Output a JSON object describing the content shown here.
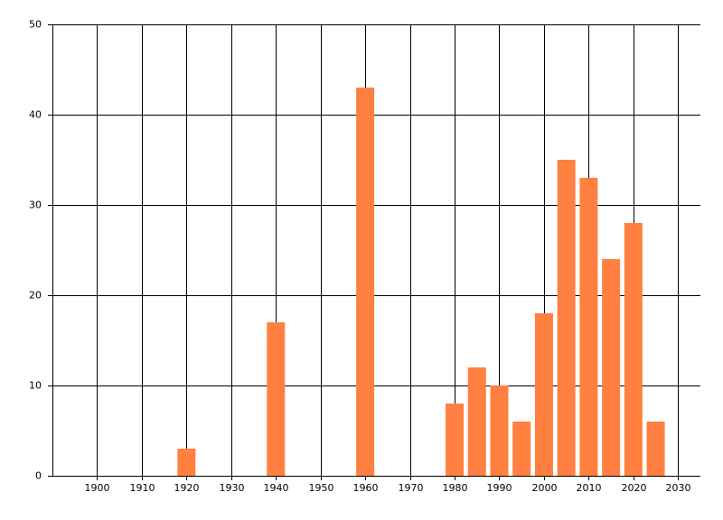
{
  "chart_data": {
    "type": "bar",
    "x": [
      1920,
      1940,
      1960,
      1980,
      1985,
      1990,
      1995,
      2000,
      2005,
      2010,
      2015,
      2020,
      2025
    ],
    "values": [
      3,
      17,
      43,
      8,
      12,
      10,
      6,
      18,
      35,
      33,
      24,
      28,
      6
    ],
    "color": "#ff8040",
    "xlim": [
      1890,
      2035
    ],
    "xticks": [
      1900,
      1910,
      1920,
      1930,
      1940,
      1950,
      1960,
      1970,
      1980,
      1990,
      2000,
      2010,
      2020,
      2030
    ],
    "ylim": [
      0,
      50
    ],
    "yticks": [
      0,
      10,
      20,
      30,
      40,
      50
    ],
    "grid": true
  }
}
